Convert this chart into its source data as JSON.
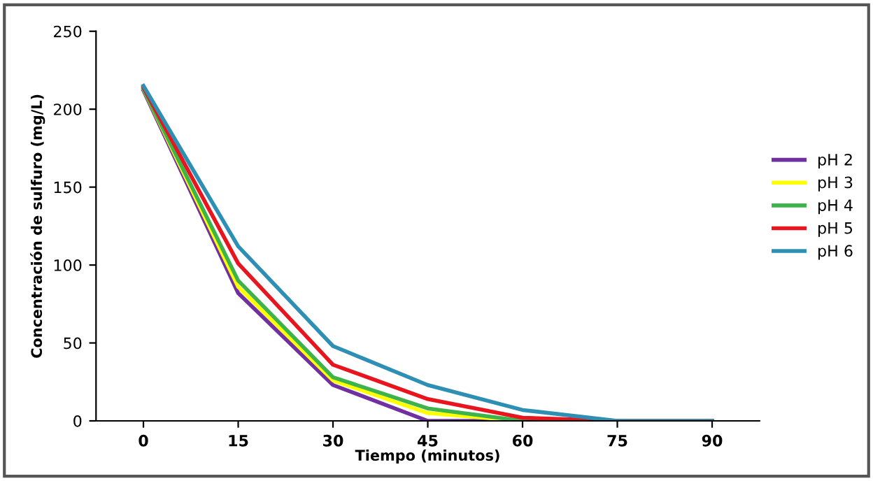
{
  "chart_data": {
    "type": "line",
    "xlabel": "Tiempo (minutos)",
    "ylabel": "Concentración de sulfuro (mg/L)",
    "categories": [
      "0",
      "15",
      "30",
      "45",
      "60",
      "75",
      "90"
    ],
    "series": [
      {
        "name": "pH 2",
        "color": "#7030a0",
        "values": [
          212,
          82,
          23,
          0,
          0,
          0,
          0
        ]
      },
      {
        "name": "pH 3",
        "color": "#ffff00",
        "values": [
          213,
          86,
          26,
          5,
          0,
          0,
          0
        ]
      },
      {
        "name": "pH 4",
        "color": "#3cb44b",
        "values": [
          213,
          90,
          28,
          8,
          0,
          0,
          0
        ]
      },
      {
        "name": "pH 5",
        "color": "#e8141e",
        "values": [
          214,
          101,
          36,
          14,
          2,
          0,
          0
        ]
      },
      {
        "name": "pH 6",
        "color": "#2e8fb5",
        "values": [
          215,
          112,
          48,
          23,
          7,
          0,
          0
        ]
      }
    ],
    "ylim": [
      0,
      250
    ],
    "yticks": [
      0,
      50,
      100,
      150,
      200,
      250
    ],
    "grid": false,
    "legend": "right",
    "marker": "none",
    "line_style": "solid"
  }
}
